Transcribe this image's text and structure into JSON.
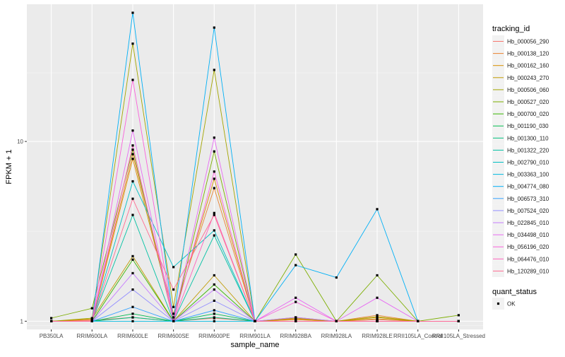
{
  "chart_data": {
    "type": "line",
    "title": "",
    "xlabel": "sample_name",
    "ylabel": "FPKM + 1",
    "y_scale": "log10",
    "ylim": [
      0.9,
      58
    ],
    "y_ticks": [
      1,
      10
    ],
    "y_tick_labels": [
      "1",
      "10"
    ],
    "grid": true,
    "categories": [
      "PB350LA",
      "RRIM600LA",
      "RRIM600LE",
      "RRIM600SE",
      "RRIM600PE",
      "RRIM901LA",
      "RRIM928BA",
      "RRIM928LA",
      "RRIM928LE",
      "RRII105LA_Control",
      "RRII105LA_Stressed"
    ],
    "legend_color_title": "tracking_id",
    "legend_shape_title": "quant_status",
    "legend_shape_entries": [
      "OK"
    ],
    "legend_position": "right",
    "series": [
      {
        "name": "Hb_000056_290",
        "color": "#F8766D",
        "values": [
          1.0,
          1.01,
          1.05,
          1.0,
          1.04,
          1.0,
          1.02,
          1.0,
          1.02,
          1.0,
          1.0
        ]
      },
      {
        "name": "Hb_000138_120",
        "color": "#EA8331",
        "values": [
          1.0,
          1.02,
          8.5,
          1.1,
          5.5,
          1.0,
          1.03,
          1.0,
          1.08,
          1.0,
          1.0
        ]
      },
      {
        "name": "Hb_000162_160",
        "color": "#D89000",
        "values": [
          1.0,
          1.0,
          8.0,
          1.05,
          6.2,
          1.0,
          1.02,
          1.0,
          1.05,
          1.0,
          1.0
        ]
      },
      {
        "name": "Hb_000243_270",
        "color": "#C09B00",
        "values": [
          1.0,
          1.03,
          2.3,
          1.0,
          1.8,
          1.0,
          1.05,
          1.0,
          1.03,
          1.0,
          1.0
        ]
      },
      {
        "name": "Hb_000506_060",
        "color": "#A3A500",
        "values": [
          1.0,
          1.04,
          35.0,
          1.2,
          25.0,
          1.0,
          1.04,
          1.0,
          1.06,
          1.0,
          1.0
        ]
      },
      {
        "name": "Hb_000527_020",
        "color": "#7CAE00",
        "values": [
          1.04,
          1.18,
          9.0,
          1.0,
          8.8,
          1.0,
          2.35,
          1.0,
          1.8,
          1.0,
          1.08
        ]
      },
      {
        "name": "Hb_000700_020",
        "color": "#39B600",
        "values": [
          1.0,
          1.0,
          2.2,
          1.0,
          1.6,
          1.0,
          1.0,
          1.0,
          1.0,
          1.0,
          1.0
        ]
      },
      {
        "name": "Hb_001190_030",
        "color": "#00BB4E",
        "values": [
          1.0,
          1.0,
          1.1,
          1.0,
          1.1,
          1.0,
          1.0,
          1.0,
          1.0,
          1.0,
          1.0
        ]
      },
      {
        "name": "Hb_001300_110",
        "color": "#00BF7D",
        "values": [
          1.0,
          1.0,
          1.05,
          1.0,
          1.05,
          1.0,
          1.0,
          1.0,
          1.0,
          1.0,
          1.0
        ]
      },
      {
        "name": "Hb_001322_220",
        "color": "#00C1A3",
        "values": [
          1.0,
          1.0,
          3.9,
          1.0,
          3.0,
          1.0,
          1.0,
          1.0,
          1.0,
          1.0,
          1.0
        ]
      },
      {
        "name": "Hb_002790_010",
        "color": "#00BFC4",
        "values": [
          1.0,
          1.0,
          6.0,
          2.0,
          3.2,
          1.0,
          1.0,
          1.0,
          1.0,
          1.0,
          1.0
        ]
      },
      {
        "name": "Hb_003363_100",
        "color": "#00BAE0",
        "values": [
          1.0,
          1.0,
          1.0,
          1.0,
          1.0,
          1.0,
          1.0,
          1.0,
          1.0,
          1.0,
          1.0
        ]
      },
      {
        "name": "Hb_004774_080",
        "color": "#00B0F6",
        "values": [
          1.0,
          1.0,
          52.0,
          1.0,
          43.0,
          1.0,
          2.05,
          1.75,
          4.2,
          1.0,
          1.0
        ]
      },
      {
        "name": "Hb_006573_310",
        "color": "#35A2FF",
        "values": [
          1.0,
          1.0,
          1.2,
          1.0,
          1.15,
          1.0,
          1.0,
          1.0,
          1.0,
          1.0,
          1.0
        ]
      },
      {
        "name": "Hb_007524_020",
        "color": "#9590FF",
        "values": [
          1.0,
          1.0,
          1.5,
          1.0,
          1.3,
          1.0,
          1.0,
          1.0,
          1.0,
          1.0,
          1.0
        ]
      },
      {
        "name": "Hb_022845_010",
        "color": "#C77CFF",
        "values": [
          1.0,
          1.0,
          1.85,
          1.0,
          1.5,
          1.0,
          1.05,
          1.0,
          1.0,
          1.0,
          1.0
        ]
      },
      {
        "name": "Hb_034498_010",
        "color": "#E76BF3",
        "values": [
          1.0,
          1.0,
          11.5,
          1.0,
          10.5,
          1.0,
          1.35,
          1.0,
          1.35,
          1.0,
          1.0
        ]
      },
      {
        "name": "Hb_056196_020",
        "color": "#FA62DB",
        "values": [
          1.0,
          1.0,
          22.0,
          1.0,
          6.8,
          1.0,
          1.28,
          1.0,
          1.0,
          1.0,
          1.0
        ]
      },
      {
        "name": "Hb_064476_010",
        "color": "#FF62BC",
        "values": [
          1.0,
          1.0,
          9.5,
          1.0,
          4.0,
          1.0,
          1.0,
          1.0,
          1.0,
          1.0,
          1.0
        ]
      },
      {
        "name": "Hb_120289_010",
        "color": "#FF6C91",
        "values": [
          1.0,
          1.0,
          4.8,
          1.5,
          3.9,
          1.0,
          1.0,
          1.0,
          1.0,
          1.0,
          1.0
        ]
      }
    ]
  }
}
